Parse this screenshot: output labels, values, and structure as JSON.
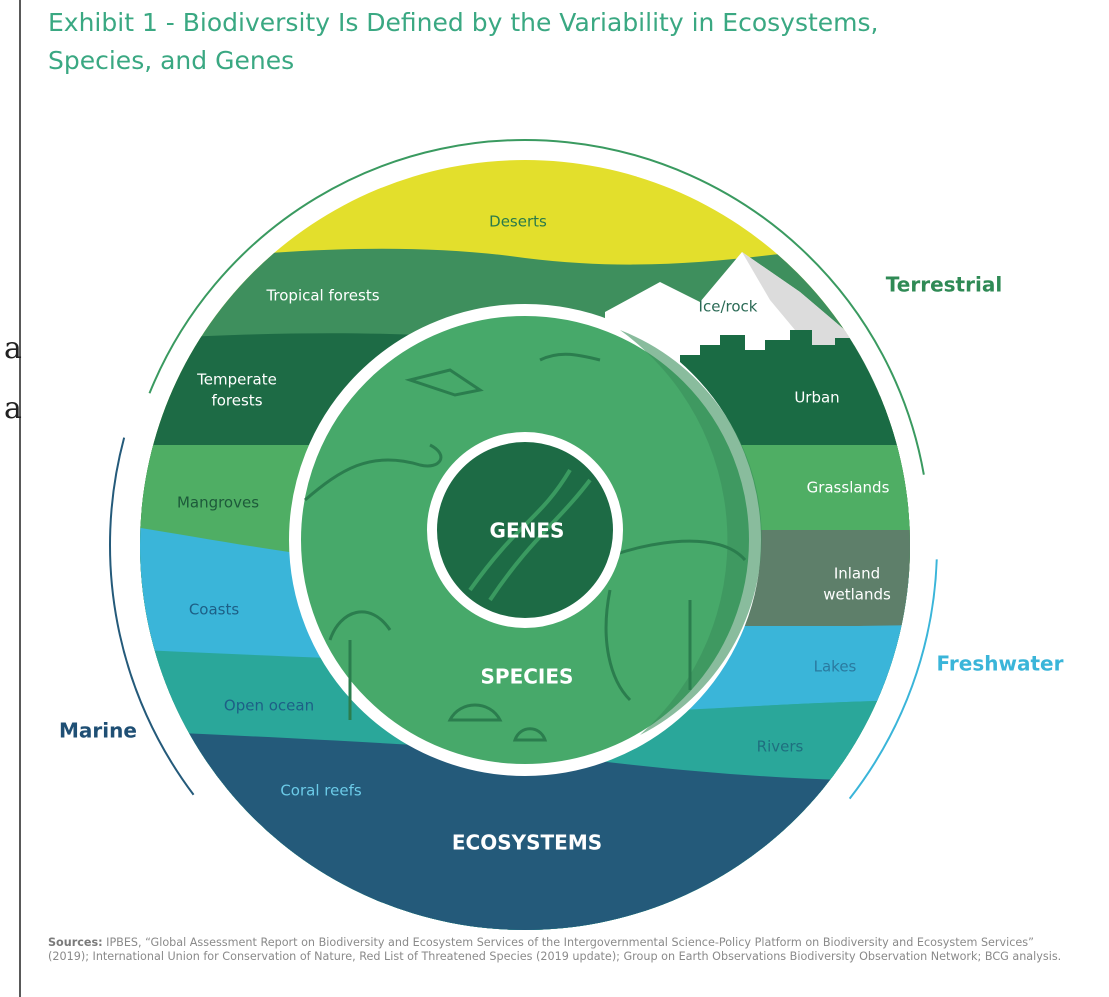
{
  "header": {
    "title_lines": [
      "Exhibit 1 - Biodiversity Is Defined by the Variability in Ecosystems,",
      "Species, and Genes"
    ]
  },
  "margin_fragments": [
    "a",
    "a"
  ],
  "realms": [
    {
      "label": "Terrestrial"
    },
    {
      "label": "Freshwater"
    },
    {
      "label": "Marine"
    }
  ],
  "ecosystems": [
    {
      "label_lines": [
        "Deserts"
      ]
    },
    {
      "label_lines": [
        "Tropical forests"
      ]
    },
    {
      "label_lines": [
        "Temperate",
        "forests"
      ]
    },
    {
      "label_lines": [
        "Mangroves"
      ]
    },
    {
      "label_lines": [
        "Coasts"
      ]
    },
    {
      "label_lines": [
        "Open ocean"
      ]
    },
    {
      "label_lines": [
        "Coral reefs"
      ]
    },
    {
      "label_lines": [
        "Ice/rock"
      ]
    },
    {
      "label_lines": [
        "Urban"
      ]
    },
    {
      "label_lines": [
        "Grasslands"
      ]
    },
    {
      "label_lines": [
        "Inland",
        "wetlands"
      ]
    },
    {
      "label_lines": [
        "Lakes"
      ]
    },
    {
      "label_lines": [
        "Rivers"
      ]
    }
  ],
  "levels": {
    "ecosystems": "ECOSYSTEMS",
    "species": "SPECIES",
    "genes": "GENES"
  },
  "sources": {
    "label": "Sources:",
    "text": "IPBES, “Global Assessment Report on Biodiversity and Ecosystem Services of the Intergovernmental Science-Policy Platform on Biodiversity and Ecosystem Services” (2019); International Union for Conservation of Nature, Red List of Threatened Species (2019 update); Group on Earth Observations Biodiversity Observation Network; BCG analysis."
  }
}
